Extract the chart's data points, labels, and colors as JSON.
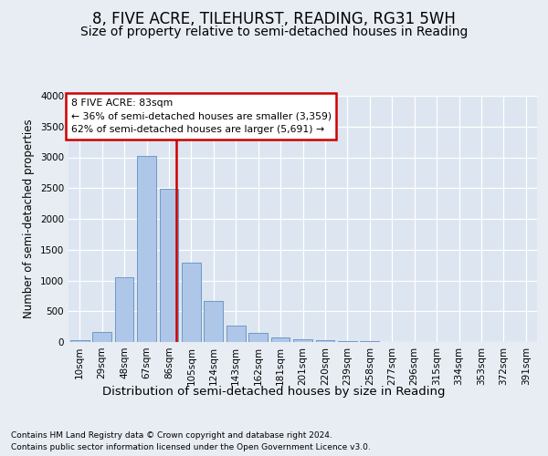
{
  "title": "8, FIVE ACRE, TILEHURST, READING, RG31 5WH",
  "subtitle": "Size of property relative to semi-detached houses in Reading",
  "xlabel": "Distribution of semi-detached houses by size in Reading",
  "ylabel": "Number of semi-detached properties",
  "footer_line1": "Contains HM Land Registry data © Crown copyright and database right 2024.",
  "footer_line2": "Contains public sector information licensed under the Open Government Licence v3.0.",
  "categories": [
    "10sqm",
    "29sqm",
    "48sqm",
    "67sqm",
    "86sqm",
    "105sqm",
    "124sqm",
    "143sqm",
    "162sqm",
    "181sqm",
    "201sqm",
    "220sqm",
    "239sqm",
    "258sqm",
    "277sqm",
    "296sqm",
    "315sqm",
    "334sqm",
    "353sqm",
    "372sqm",
    "391sqm"
  ],
  "values": [
    25,
    160,
    1050,
    3020,
    2490,
    1290,
    660,
    260,
    150,
    80,
    50,
    25,
    12,
    8,
    5,
    4,
    3,
    3,
    3,
    3,
    3
  ],
  "bar_color": "#aec6e8",
  "bar_edge_color": "#6090c0",
  "vline_index": 4,
  "vline_color": "#cc0000",
  "annotation_text": "8 FIVE ACRE: 83sqm\n← 36% of semi-detached houses are smaller (3,359)\n62% of semi-detached houses are larger (5,691) →",
  "annotation_box_color": "#ffffff",
  "annotation_box_edge_color": "#cc0000",
  "ylim": [
    0,
    4000
  ],
  "yticks": [
    0,
    500,
    1000,
    1500,
    2000,
    2500,
    3000,
    3500,
    4000
  ],
  "background_color": "#e8edf4",
  "plot_background_color": "#dce5f0",
  "grid_color": "#ffffff",
  "title_fontsize": 12,
  "subtitle_fontsize": 10,
  "tick_fontsize": 7.5,
  "ylabel_fontsize": 8.5,
  "xlabel_fontsize": 9.5,
  "footer_fontsize": 6.5
}
